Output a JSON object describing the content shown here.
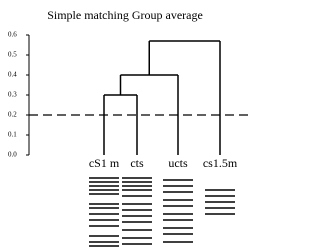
{
  "chart_data": {
    "type": "dendrogram",
    "title": "Simple matching  Group average",
    "leaves": [
      "cS1 m",
      "cts",
      "ucts",
      "cs1.5m"
    ],
    "merge_heights": [
      0.3,
      0.4,
      0.57
    ],
    "threshold": 0.2,
    "ylim": [
      0,
      0.6
    ],
    "yticks": [
      {
        "value": 0,
        "label": "0.0"
      },
      0.1,
      0.2,
      0.3,
      0.4,
      0.5,
      0.6
    ]
  }
}
